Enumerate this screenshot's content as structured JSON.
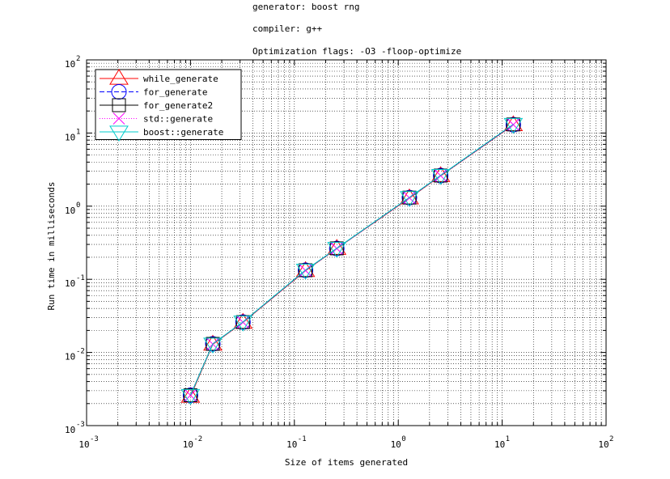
{
  "title_lines": [
    "generator: boost rng",
    "compiler: g++",
    "Optimization flags: -O3 -floop-optimize"
  ],
  "chart_data": {
    "type": "line",
    "title": "generator: boost rng / compiler: g++ / Optimization flags: -O3 -floop-optimize",
    "xlabel": "Size of items generated",
    "ylabel": "Run time in milliseconds",
    "xscale": "log",
    "yscale": "log",
    "xlim": [
      0.001,
      100
    ],
    "ylim": [
      0.001,
      100
    ],
    "grid": true,
    "legend_position": "top-left",
    "x": [
      0.01,
      0.0164,
      0.032,
      0.128,
      0.256,
      1.28,
      2.56,
      12.8
    ],
    "series": [
      {
        "name": "while_generate",
        "color": "#ff0000",
        "marker": "triangle-up",
        "line": "solid",
        "values": [
          0.0025,
          0.0129,
          0.0257,
          0.131,
          0.263,
          1.29,
          2.6,
          12.9
        ]
      },
      {
        "name": "for_generate",
        "color": "#0000ff",
        "marker": "circle",
        "line": "dashed",
        "values": [
          0.0026,
          0.0131,
          0.026,
          0.133,
          0.264,
          1.31,
          2.62,
          13.0
        ]
      },
      {
        "name": "for_generate2",
        "color": "#000000",
        "marker": "square",
        "line": "solid",
        "values": [
          0.0026,
          0.0131,
          0.026,
          0.133,
          0.265,
          1.31,
          2.62,
          13.1
        ]
      },
      {
        "name": "std::generate",
        "color": "#ff00ff",
        "marker": "x",
        "line": "dotted",
        "values": [
          0.0026,
          0.013,
          0.0259,
          0.132,
          0.264,
          1.3,
          2.61,
          13.0
        ]
      },
      {
        "name": "boost::generate",
        "color": "#00cccc",
        "marker": "triangle-down",
        "line": "solid",
        "values": [
          0.0026,
          0.0131,
          0.0262,
          0.134,
          0.266,
          1.32,
          2.64,
          13.2
        ]
      }
    ],
    "x_ticks": [
      {
        "base": "10",
        "exp": "-3"
      },
      {
        "base": "10",
        "exp": "-2"
      },
      {
        "base": "10",
        "exp": "-1"
      },
      {
        "base": "10",
        "exp": "0"
      },
      {
        "base": "10",
        "exp": "1"
      },
      {
        "base": "10",
        "exp": "2"
      }
    ],
    "y_ticks": [
      {
        "base": "10",
        "exp": "-3"
      },
      {
        "base": "10",
        "exp": "-2"
      },
      {
        "base": "10",
        "exp": "-1"
      },
      {
        "base": "10",
        "exp": "0"
      },
      {
        "base": "10",
        "exp": "1"
      },
      {
        "base": "10",
        "exp": "2"
      }
    ]
  }
}
